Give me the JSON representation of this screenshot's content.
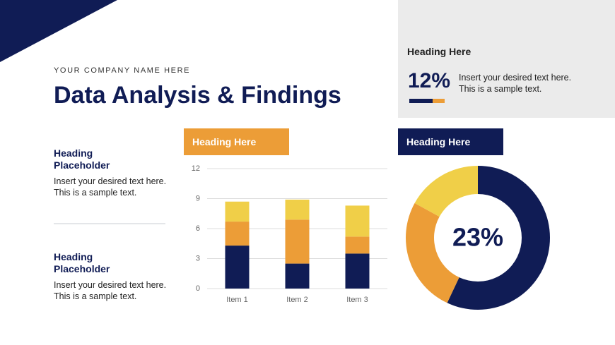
{
  "company": "YOUR COMPANY NAME HERE",
  "title": "Data Analysis & Findings",
  "sections": [
    {
      "heading": "Heading Placeholder",
      "text": "Insert your desired text here. This is a sample text."
    },
    {
      "heading": "Heading Placeholder",
      "text": "Insert your desired text here. This is a sample text."
    }
  ],
  "stat": {
    "heading": "Heading Here",
    "figure": "12%",
    "text": "Insert your desired text here. This is a sample text."
  },
  "bar_chart": {
    "type": "bar",
    "stacked": true,
    "heading": "Heading Here",
    "categories": [
      "Item 1",
      "Item 2",
      "Item 3"
    ],
    "series": [
      {
        "color": "#101c55",
        "values": [
          4.3,
          2.5,
          3.5
        ]
      },
      {
        "color": "#ec9d37",
        "values": [
          2.4,
          4.4,
          1.7
        ]
      },
      {
        "color": "#f0cf48",
        "values": [
          2.0,
          2.0,
          3.1
        ]
      }
    ],
    "ylim": [
      0,
      12
    ],
    "yticks": [
      0,
      3,
      6,
      9,
      12
    ],
    "grid": true
  },
  "donut": {
    "type": "pie",
    "heading": "Heading Here",
    "center_label": "23%",
    "values": [
      57,
      26,
      17
    ],
    "colors": [
      "#101c55",
      "#ec9d37",
      "#f0cf48"
    ]
  }
}
